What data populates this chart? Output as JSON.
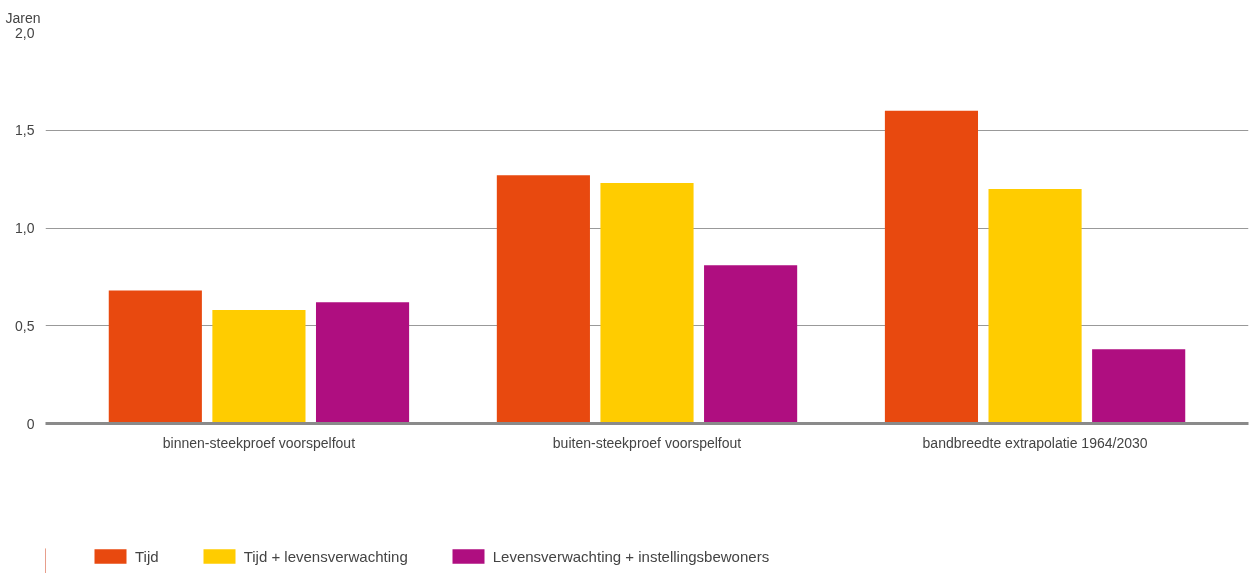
{
  "chart_data": {
    "type": "bar",
    "ylabel": "Jaren",
    "categories": [
      "binnen-steekproef voorspelfout",
      "buiten-steekproef voorspelfout",
      "bandbreedte extrapolatie 1964/2030"
    ],
    "series": [
      {
        "name": "Tijd",
        "color": "#e8490f",
        "values": [
          0.68,
          1.27,
          1.6
        ]
      },
      {
        "name": "Tijd + levensverwachting",
        "color": "#ffcc00",
        "values": [
          0.58,
          1.23,
          1.2
        ]
      },
      {
        "name": "Levensverwachting + instellingsbewoners",
        "color": "#af0e80",
        "values": [
          0.62,
          0.81,
          0.38
        ]
      }
    ],
    "ylim": [
      0,
      2.0
    ],
    "yticks": [
      {
        "value": 0,
        "label": "0"
      },
      {
        "value": 0.5,
        "label": "0,5"
      },
      {
        "value": 1.0,
        "label": "1,0"
      },
      {
        "value": 1.5,
        "label": "1,5"
      },
      {
        "value": 2.0,
        "label": "2,0"
      }
    ],
    "grid": "y",
    "legend": "bottom"
  }
}
